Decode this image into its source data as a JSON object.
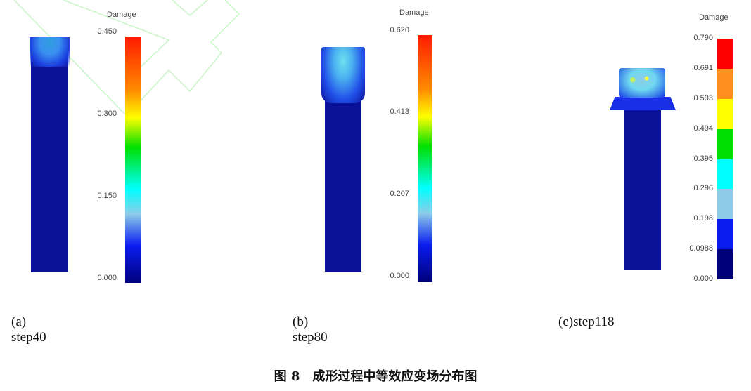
{
  "panels": [
    {
      "legend_title": "Damage",
      "ticks": [
        "0.450",
        "0.300",
        "0.150",
        "0.000"
      ],
      "caption": "(a) step40",
      "scale": "continuous"
    },
    {
      "legend_title": "Damage",
      "ticks": [
        "0.620",
        "0.413",
        "0.207",
        "0.000"
      ],
      "caption": "(b) step80",
      "scale": "continuous"
    },
    {
      "legend_title": "Damage",
      "ticks": [
        "0.790",
        "0.691",
        "0.593",
        "0.494",
        "0.395",
        "0.296",
        "0.198",
        "0.0988",
        "0.000"
      ],
      "caption": "(c)step118",
      "scale": "banded",
      "band_colors": [
        "#ff0000",
        "#ff9020",
        "#ffff00",
        "#00e000",
        "#00ffff",
        "#8ccce8",
        "#0a1cf0",
        "#00007a"
      ]
    }
  ],
  "figure_title": "图 8　成形过程中等效应变场分布图",
  "colors": {
    "billet": "#0c119a",
    "gradient": [
      "#ff0000",
      "#ff8c00",
      "#ffff00",
      "#00e000",
      "#00ffff",
      "#8ccce8",
      "#0a1cf0",
      "#00007a"
    ]
  }
}
